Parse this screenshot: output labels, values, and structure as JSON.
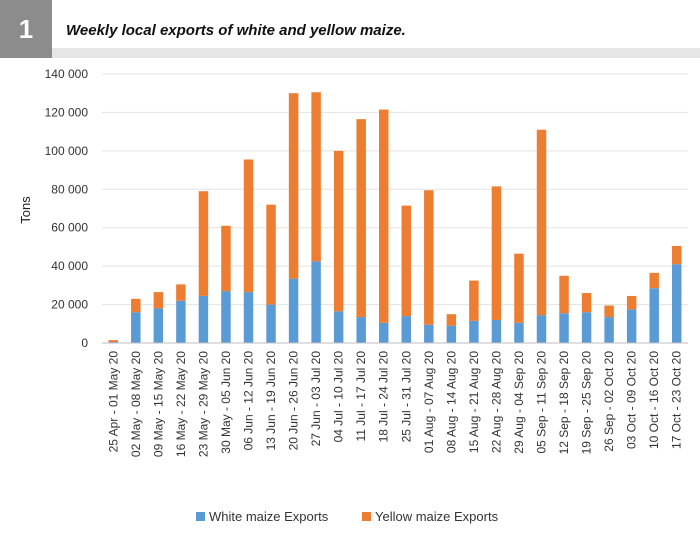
{
  "badge": "1",
  "title": "Weekly local exports of white and yellow maize.",
  "colors": {
    "white": "#5b9bd5",
    "yellow": "#ed7d31",
    "badge_bg": "#8c8c8c"
  },
  "chart_data": {
    "type": "bar",
    "stacked": true,
    "title": "Weekly local exports of white and yellow maize.",
    "ylabel": "Tons",
    "xlabel": "",
    "ylim": [
      0,
      140000
    ],
    "yticks": [
      0,
      20000,
      40000,
      60000,
      80000,
      100000,
      120000,
      140000
    ],
    "ytick_labels": [
      "0",
      "20 000",
      "40 000",
      "60 000",
      "80 000",
      "100 000",
      "120 000",
      "140 000"
    ],
    "grid": true,
    "legend": "bottom",
    "categories": [
      "25 Apr - 01 May 20",
      "02 May - 08 May 20",
      "09 May - 15 May 20",
      "16 May - 22 May 20",
      "23 May - 29 May 20",
      "30 May - 05 Jun 20",
      "06 Jun - 12 Jun 20",
      "13 Jun - 19 Jun 20",
      "20 Jun - 26 Jun 20",
      "27 Jun - 03 Jul 20",
      "04 Jul - 10 Jul 20",
      "11 Jul - 17 Jul 20",
      "18 Jul - 24 Jul 20",
      "25 Jul - 31 Jul 20",
      "01 Aug - 07 Aug 20",
      "08 Aug - 14 Aug 20",
      "15 Aug - 21 Aug 20",
      "22 Aug - 28 Aug 20",
      "29 Aug - 04 Sep 20",
      "05 Sep - 11 Sep 20",
      "12 Sep - 18 Sep 20",
      "19 Sep - 25 Sep 20",
      "26 Sep - 02 Oct 20",
      "03 Oct - 09 Oct 20",
      "10 Oct - 16 Oct 20",
      "17 Oct - 23 Oct 20"
    ],
    "series": [
      {
        "name": "White maize Exports",
        "values": [
          500,
          16000,
          18000,
          22000,
          24500,
          27000,
          26500,
          20000,
          33500,
          42500,
          16500,
          13500,
          10500,
          14000,
          9500,
          9000,
          11500,
          12000,
          10500,
          14500,
          15500,
          16000,
          13500,
          17500,
          28500,
          41000
        ]
      },
      {
        "name": "Yellow maize Exports",
        "values": [
          1000,
          7000,
          8500,
          8500,
          54500,
          34000,
          69000,
          52000,
          96500,
          88000,
          83500,
          103000,
          111000,
          57500,
          70000,
          6000,
          21000,
          69500,
          36000,
          96500,
          19500,
          10000,
          6000,
          7000,
          8000,
          9500
        ]
      }
    ]
  }
}
